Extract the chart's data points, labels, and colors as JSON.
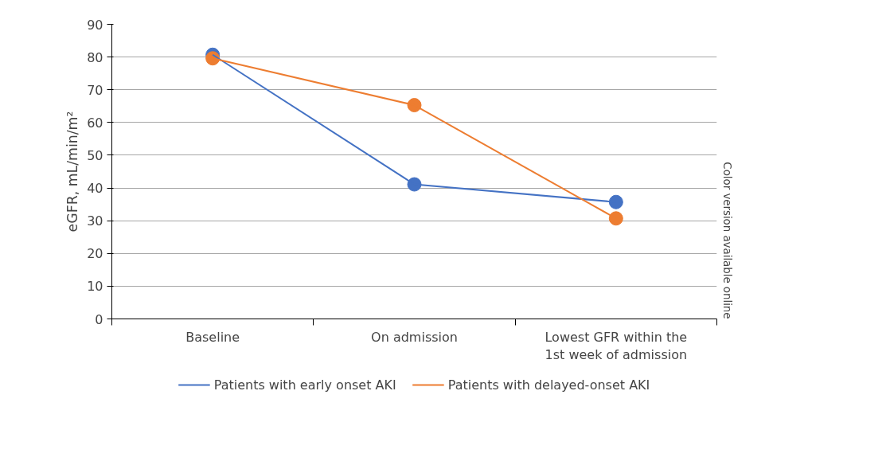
{
  "chart_data": {
    "type": "line",
    "ylabel": "eGFR, mL/min/m²",
    "categories": [
      "Baseline",
      "On admission",
      "Lowest GFR within the 1st week of admission"
    ],
    "series": [
      {
        "name": "Patients with early onset AKI",
        "color": "#4472c4",
        "values": [
          80.7,
          41.1,
          35.7
        ]
      },
      {
        "name": "Patients with delayed-onset AKI",
        "color": "#ed7d31",
        "values": [
          79.6,
          65.3,
          30.7
        ]
      }
    ],
    "ylim": [
      0,
      90
    ],
    "yticks": [
      0,
      10,
      20,
      30,
      40,
      50,
      60,
      70,
      80,
      90
    ],
    "grid": "y",
    "legend": "bottom",
    "marker": "circle",
    "line_style": "solid",
    "annotations": [
      "Color version available online"
    ]
  }
}
